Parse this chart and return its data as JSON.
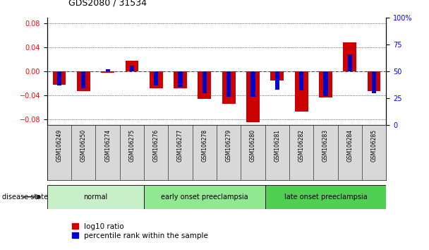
{
  "title": "GDS2080 / 31534",
  "samples": [
    "GSM106249",
    "GSM106250",
    "GSM106274",
    "GSM106275",
    "GSM106276",
    "GSM106277",
    "GSM106278",
    "GSM106279",
    "GSM106280",
    "GSM106281",
    "GSM106282",
    "GSM106283",
    "GSM106284",
    "GSM106285"
  ],
  "log10_ratio": [
    -0.023,
    -0.033,
    -0.003,
    0.018,
    -0.028,
    -0.028,
    -0.046,
    -0.055,
    -0.085,
    -0.015,
    -0.068,
    -0.044,
    0.048,
    -0.033
  ],
  "percentile_rank": [
    35,
    32,
    52,
    56,
    35,
    34,
    27,
    23,
    23,
    31,
    30,
    24,
    68,
    27
  ],
  "groups": [
    {
      "label": "normal",
      "start": 0,
      "end": 4,
      "color": "#c8f0c8"
    },
    {
      "label": "early onset preeclampsia",
      "start": 4,
      "end": 9,
      "color": "#90e890"
    },
    {
      "label": "late onset preeclampsia",
      "start": 9,
      "end": 14,
      "color": "#50d050"
    }
  ],
  "disease_state_label": "disease state",
  "ylim_left": [
    -0.09,
    0.09
  ],
  "ylim_right": [
    0,
    100
  ],
  "yticks_left": [
    -0.08,
    -0.04,
    0,
    0.04,
    0.08
  ],
  "yticks_right": [
    0,
    25,
    50,
    75,
    100
  ],
  "bar_color_red": "#cc0000",
  "bar_color_blue": "#0000cc",
  "zero_line_color": "#cc0000",
  "legend_items": [
    "log10 ratio",
    "percentile rank within the sample"
  ],
  "red_bar_width": 0.55,
  "blue_bar_width": 0.18,
  "figsize": [
    6.08,
    3.54
  ],
  "dpi": 100
}
